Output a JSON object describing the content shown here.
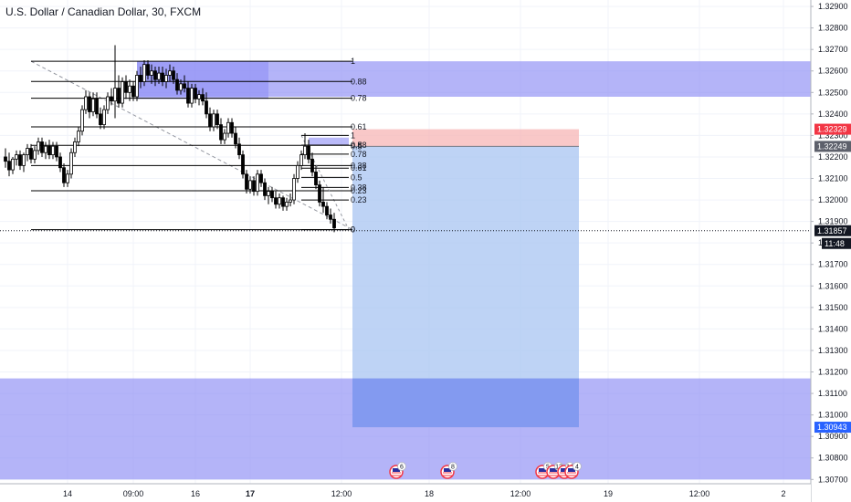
{
  "header": {
    "symbol_title": "U.S. Dollar / Canadian Dollar, 30, FXCM"
  },
  "colors": {
    "background": "#ffffff",
    "grid": "#f0f3fa",
    "candle_up": "#ffffff",
    "candle_down": "#000000",
    "candle_border": "#000000",
    "zone_blue": "#8c8cf5",
    "stop_zone": "#f7b5b5",
    "target_zone": "#aec8f3",
    "target_dark": "#7b93ee",
    "fib_line": "#000000",
    "stop_badge": "#f23645",
    "target_badge": "#2962ff",
    "current_badge": "#131722",
    "axis_text": "#131722"
  },
  "chart_data": {
    "type": "candlestick",
    "title": "U.S. Dollar / Canadian Dollar, 30, FXCM",
    "ylim": [
      1.3068,
      1.3293
    ],
    "y_ticks": [
      "1.32900",
      "1.32800",
      "1.32700",
      "1.32600",
      "1.32500",
      "1.32400",
      "1.32300",
      "1.32200",
      "1.32100",
      "1.32000",
      "1.31900",
      "1.31800",
      "1.31700",
      "1.31600",
      "1.31500",
      "1.31400",
      "1.31300",
      "1.31200",
      "1.31100",
      "1.31000",
      "1.30900",
      "1.30800",
      "1.30700"
    ],
    "x_ticks": [
      {
        "label": "14",
        "index": 17
      },
      {
        "label": "09:00",
        "index": 35
      },
      {
        "label": "16",
        "index": 52
      },
      {
        "label": "17",
        "index": 67
      },
      {
        "label": "12:00",
        "index": 92
      },
      {
        "label": "18",
        "index": 116
      },
      {
        "label": "12:00",
        "index": 141
      },
      {
        "label": "19",
        "index": 165
      },
      {
        "label": "12:00",
        "index": 190
      },
      {
        "label": "2",
        "index": 213
      }
    ],
    "candles": [
      [
        1.322,
        1.3224,
        1.3215,
        1.3218
      ],
      [
        1.3218,
        1.3222,
        1.3211,
        1.3214
      ],
      [
        1.3214,
        1.322,
        1.3212,
        1.3219
      ],
      [
        1.3219,
        1.3223,
        1.3216,
        1.3221
      ],
      [
        1.3221,
        1.3223,
        1.3214,
        1.3216
      ],
      [
        1.3216,
        1.3222,
        1.3213,
        1.3221
      ],
      [
        1.3221,
        1.3226,
        1.3218,
        1.3224
      ],
      [
        1.3224,
        1.3226,
        1.3217,
        1.3219
      ],
      [
        1.3219,
        1.3225,
        1.3217,
        1.3223
      ],
      [
        1.3223,
        1.3229,
        1.3221,
        1.3227
      ],
      [
        1.3227,
        1.3229,
        1.322,
        1.3222
      ],
      [
        1.3222,
        1.3227,
        1.3219,
        1.3225
      ],
      [
        1.3225,
        1.3228,
        1.3219,
        1.3221
      ],
      [
        1.3221,
        1.3227,
        1.3219,
        1.3225
      ],
      [
        1.3225,
        1.3227,
        1.3218,
        1.322
      ],
      [
        1.322,
        1.3222,
        1.3213,
        1.3215
      ],
      [
        1.3215,
        1.3217,
        1.3206,
        1.3208
      ],
      [
        1.3208,
        1.3214,
        1.3206,
        1.3212
      ],
      [
        1.3212,
        1.3224,
        1.321,
        1.3222
      ],
      [
        1.3222,
        1.3229,
        1.322,
        1.3227
      ],
      [
        1.3227,
        1.3234,
        1.3225,
        1.3232
      ],
      [
        1.3232,
        1.3244,
        1.323,
        1.3242
      ],
      [
        1.3242,
        1.3251,
        1.324,
        1.3248
      ],
      [
        1.3248,
        1.325,
        1.3238,
        1.3241
      ],
      [
        1.3241,
        1.325,
        1.3239,
        1.3247
      ],
      [
        1.3247,
        1.325,
        1.3238,
        1.324
      ],
      [
        1.324,
        1.3243,
        1.3233,
        1.3235
      ],
      [
        1.3235,
        1.3244,
        1.3233,
        1.3242
      ],
      [
        1.3242,
        1.325,
        1.324,
        1.3248
      ],
      [
        1.3248,
        1.3252,
        1.3244,
        1.3246
      ],
      [
        1.3246,
        1.3272,
        1.3238,
        1.3252
      ],
      [
        1.3252,
        1.3258,
        1.3243,
        1.3245
      ],
      [
        1.3245,
        1.3257,
        1.3243,
        1.3255
      ],
      [
        1.3255,
        1.3258,
        1.3247,
        1.325
      ],
      [
        1.325,
        1.3256,
        1.3246,
        1.3253
      ],
      [
        1.3253,
        1.3255,
        1.3246,
        1.3248
      ],
      [
        1.3248,
        1.326,
        1.3246,
        1.3258
      ],
      [
        1.3258,
        1.3262,
        1.3252,
        1.3255
      ],
      [
        1.3255,
        1.3265,
        1.3253,
        1.3263
      ],
      [
        1.3263,
        1.3265,
        1.3256,
        1.3258
      ],
      [
        1.3258,
        1.3263,
        1.3254,
        1.326
      ],
      [
        1.326,
        1.3262,
        1.3253,
        1.3256
      ],
      [
        1.3256,
        1.3262,
        1.3254,
        1.3259
      ],
      [
        1.3259,
        1.3262,
        1.3253,
        1.3255
      ],
      [
        1.3255,
        1.3261,
        1.3252,
        1.3258
      ],
      [
        1.3258,
        1.3263,
        1.3255,
        1.326
      ],
      [
        1.326,
        1.3262,
        1.3254,
        1.3256
      ],
      [
        1.3256,
        1.3259,
        1.3249,
        1.3251
      ],
      [
        1.3251,
        1.3256,
        1.3249,
        1.3254
      ],
      [
        1.3254,
        1.3258,
        1.325,
        1.3252
      ],
      [
        1.3252,
        1.3255,
        1.3243,
        1.3245
      ],
      [
        1.3245,
        1.3254,
        1.3243,
        1.3252
      ],
      [
        1.3252,
        1.3254,
        1.3245,
        1.3247
      ],
      [
        1.3247,
        1.3251,
        1.3244,
        1.3249
      ],
      [
        1.3249,
        1.3252,
        1.3244,
        1.3246
      ],
      [
        1.3246,
        1.325,
        1.3238,
        1.324
      ],
      [
        1.324,
        1.3243,
        1.3232,
        1.3234
      ],
      [
        1.3234,
        1.3242,
        1.3232,
        1.324
      ],
      [
        1.324,
        1.3242,
        1.3233,
        1.3235
      ],
      [
        1.3235,
        1.3238,
        1.3226,
        1.3228
      ],
      [
        1.3228,
        1.3233,
        1.3226,
        1.3231
      ],
      [
        1.3231,
        1.3238,
        1.3229,
        1.3236
      ],
      [
        1.3236,
        1.3238,
        1.3229,
        1.3231
      ],
      [
        1.3231,
        1.3234,
        1.3224,
        1.3226
      ],
      [
        1.3226,
        1.3229,
        1.3219,
        1.3221
      ],
      [
        1.3221,
        1.3223,
        1.321,
        1.3212
      ],
      [
        1.3212,
        1.3214,
        1.3203,
        1.3205
      ],
      [
        1.3205,
        1.3211,
        1.3203,
        1.3209
      ],
      [
        1.3209,
        1.3211,
        1.3202,
        1.3204
      ],
      [
        1.3204,
        1.3214,
        1.3202,
        1.3212
      ],
      [
        1.3212,
        1.3214,
        1.3206,
        1.3208
      ],
      [
        1.3208,
        1.321,
        1.32,
        1.3202
      ],
      [
        1.3202,
        1.3206,
        1.3198,
        1.3204
      ],
      [
        1.3204,
        1.3206,
        1.3199,
        1.3201
      ],
      [
        1.3201,
        1.3204,
        1.3196,
        1.3198
      ],
      [
        1.3198,
        1.3203,
        1.3196,
        1.3201
      ],
      [
        1.3201,
        1.3202,
        1.3195,
        1.3197
      ],
      [
        1.3197,
        1.3201,
        1.3195,
        1.3199
      ],
      [
        1.3199,
        1.3203,
        1.3197,
        1.32
      ],
      [
        1.32,
        1.3212,
        1.3198,
        1.321
      ],
      [
        1.321,
        1.3218,
        1.3208,
        1.3216
      ],
      [
        1.3216,
        1.3223,
        1.3214,
        1.3221
      ],
      [
        1.3221,
        1.3231,
        1.3219,
        1.3225
      ],
      [
        1.3225,
        1.3228,
        1.3217,
        1.3219
      ],
      [
        1.3219,
        1.3222,
        1.3211,
        1.3213
      ],
      [
        1.3213,
        1.3216,
        1.3205,
        1.3207
      ],
      [
        1.3207,
        1.3209,
        1.3197,
        1.3199
      ],
      [
        1.3199,
        1.3206,
        1.3194,
        1.3197
      ],
      [
        1.3197,
        1.3199,
        1.3191,
        1.3193
      ],
      [
        1.3193,
        1.3196,
        1.3189,
        1.3191
      ],
      [
        1.3191,
        1.3194,
        1.3185,
        1.3187
      ]
    ],
    "annotations": {
      "fib_left": {
        "x_start_index": 7,
        "x_end_index": 95,
        "price_top": 1.32645,
        "price_bottom": 1.31862,
        "levels": [
          {
            "label": "1",
            "price": 1.32645
          },
          {
            "label": "0.88",
            "price": 1.32551
          },
          {
            "label": "0.78",
            "price": 1.32473
          },
          {
            "label": "0.61",
            "price": 1.3234
          },
          {
            "label": "0.5",
            "price": 1.32254
          },
          {
            "label": "0.38",
            "price": 1.3216
          },
          {
            "label": "0.23",
            "price": 1.32043
          },
          {
            "label": "0",
            "price": 1.31862
          }
        ]
      },
      "fib_right": {
        "x_start_index": 81,
        "x_end_index": 94,
        "levels": [
          {
            "label": "1",
            "price": 1.323
          },
          {
            "label": "0.88",
            "price": 1.32255
          },
          {
            "label": "0.78",
            "price": 1.32213
          },
          {
            "label": "0.61",
            "price": 1.32148
          },
          {
            "label": "0.5",
            "price": 1.32105
          },
          {
            "label": "0.38",
            "price": 1.32058
          },
          {
            "label": "0.23",
            "price": 1.32
          },
          {
            "label": "0",
            "price": 1.31862
          }
        ]
      },
      "fib_right_overlap_label": "0.5",
      "supply_zone": {
        "price_top": 1.32645,
        "price_bottom": 1.3248
      },
      "demand_zone": {
        "price_top": 1.3117,
        "price_bottom": 1.307
      },
      "position": {
        "entry": 1.32249,
        "stop": 1.32329,
        "target": 1.30943,
        "x_start_index": 95,
        "x_end_index": 157
      },
      "current_price": 1.31857,
      "countdown": "11:48",
      "price_badges": [
        "1.32329",
        "1.32249",
        "1.31857",
        "1.30943"
      ],
      "events": [
        {
          "index": 107,
          "count": "6"
        },
        {
          "index": 121,
          "count": "8"
        },
        {
          "index": 147,
          "count": "5"
        },
        {
          "index": 150,
          "count": "12"
        },
        {
          "index": 153,
          "count": "14"
        },
        {
          "index": 155,
          "count": "4"
        }
      ]
    }
  }
}
